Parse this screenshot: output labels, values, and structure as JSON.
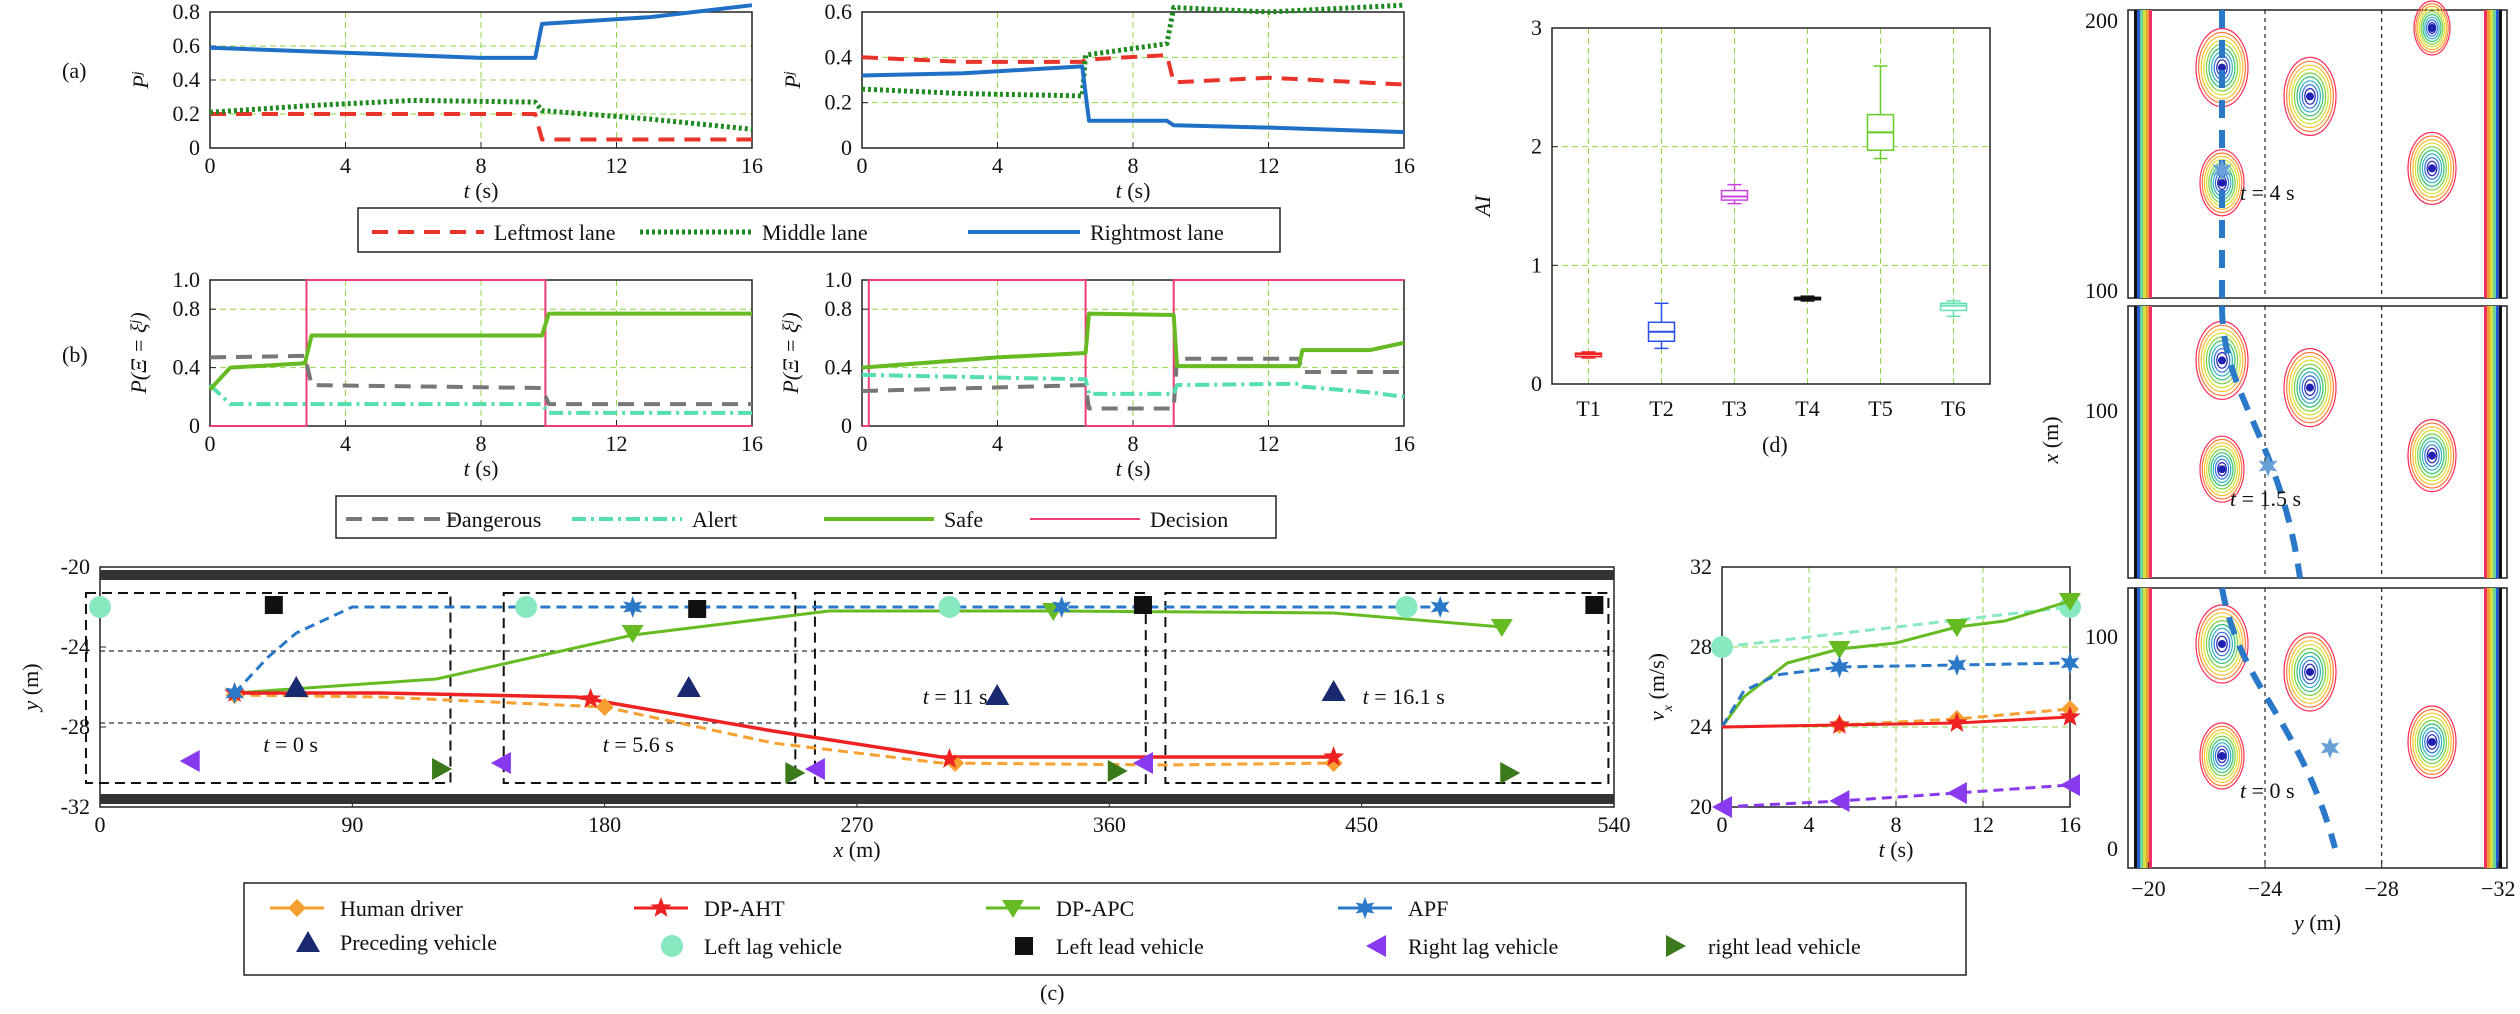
{
  "colors": {
    "leftmost": "#e8342a",
    "middle": "#1f8a1f",
    "rightmost": "#2070c8",
    "dangerous": "#777777",
    "alert": "#55dfb0",
    "safe": "#66bb22",
    "decision": "#f03c78",
    "human": "#f5a030",
    "dpaht": "#ee2222",
    "dpapc": "#66bb22",
    "apf": "#2a78c8",
    "preceding": "#1a2a70",
    "leftlag": "#88e8c0",
    "leftlead": "#111111",
    "rightlag": "#8a3aee",
    "rightlead": "#3a7a1a",
    "grid": "#8fd64a"
  },
  "labels": {
    "a": "(a)",
    "b": "(b)",
    "c": "(c)",
    "d": "(d)",
    "pj": "P",
    "pj_sup": "j",
    "pxi": "P(Ξ = ξ",
    "pxi_sup": "j",
    "pxi_end": ")",
    "t_s": "t (s)",
    "y_m": "y (m)",
    "x_m": "x (m)",
    "vx": "v",
    "vx_sub": "x",
    "vx_unit": " (m/s)",
    "ai": "AI",
    "snap_t4": "t = 4 s",
    "snap_t15": "t = 1.5 s",
    "snap_t0": "t = 0 s",
    "c_t0": "t = 0 s",
    "c_t56": "t = 5.6 s",
    "c_t11": "t = 11 s",
    "c_t161": "t = 16.1 s"
  },
  "legend_a": [
    "Leftmost lane",
    "Middle lane",
    "Rightmost lane"
  ],
  "legend_b": [
    "Dangerous",
    "Alert",
    "Safe",
    "Decision"
  ],
  "legend_c": [
    "Human driver",
    "DP-AHT",
    "DP-APC",
    "APF",
    "Preceding vehicle",
    "Left lag vehicle",
    "Left lead vehicle",
    "Right lag vehicle",
    "right lead vehicle"
  ],
  "chart_data": [
    {
      "id": "a1",
      "type": "line",
      "xlim": [
        0,
        16
      ],
      "ylim": [
        0,
        0.8
      ],
      "xticks": [
        "0",
        "4",
        "8",
        "12",
        "16"
      ],
      "yticks": [
        "0",
        "0.2",
        "0.4",
        "0.6",
        "0.8"
      ],
      "xlabel": "t (s)",
      "ylabel": "P^j",
      "series": [
        {
          "name": "Leftmost lane",
          "x": [
            0,
            9.6,
            9.8,
            16
          ],
          "y": [
            0.2,
            0.2,
            0.05,
            0.05
          ]
        },
        {
          "name": "Middle lane",
          "x": [
            0,
            3,
            6,
            9.6,
            9.8,
            13,
            16
          ],
          "y": [
            0.21,
            0.25,
            0.28,
            0.27,
            0.22,
            0.17,
            0.11
          ]
        },
        {
          "name": "Rightmost lane",
          "x": [
            0,
            4,
            8,
            9.6,
            9.8,
            13,
            16
          ],
          "y": [
            0.59,
            0.56,
            0.53,
            0.53,
            0.73,
            0.77,
            0.84
          ]
        }
      ]
    },
    {
      "id": "a2",
      "type": "line",
      "xlim": [
        0,
        16
      ],
      "ylim": [
        0,
        0.6
      ],
      "xticks": [
        "0",
        "4",
        "8",
        "12",
        "16"
      ],
      "yticks": [
        "0",
        "0.2",
        "0.4",
        "0.6"
      ],
      "xlabel": "t (s)",
      "ylabel": "P^j",
      "series": [
        {
          "name": "Leftmost lane",
          "x": [
            0,
            3,
            6.5,
            6.6,
            9,
            9.2,
            12,
            16
          ],
          "y": [
            0.4,
            0.38,
            0.38,
            0.39,
            0.41,
            0.29,
            0.31,
            0.28
          ]
        },
        {
          "name": "Middle lane",
          "x": [
            0,
            3,
            6.5,
            6.6,
            9,
            9.2,
            12,
            16
          ],
          "y": [
            0.26,
            0.24,
            0.23,
            0.41,
            0.46,
            0.62,
            0.6,
            0.63
          ]
        },
        {
          "name": "Rightmost lane",
          "x": [
            0,
            3,
            6.5,
            6.7,
            9,
            9.2,
            12,
            16
          ],
          "y": [
            0.32,
            0.33,
            0.36,
            0.12,
            0.12,
            0.1,
            0.09,
            0.07
          ]
        }
      ]
    },
    {
      "id": "b1",
      "type": "line",
      "xlim": [
        0,
        16
      ],
      "ylim": [
        0,
        1.0
      ],
      "xticks": [
        "0",
        "4",
        "8",
        "12",
        "16"
      ],
      "yticks": [
        "0",
        "0.4",
        "0.8",
        "1.0"
      ],
      "xlabel": "t (s)",
      "ylabel": "P(Ξ = ξ^j)",
      "series": [
        {
          "name": "Dangerous",
          "x": [
            0,
            2.8,
            3,
            9.8,
            10,
            16
          ],
          "y": [
            0.47,
            0.48,
            0.28,
            0.26,
            0.15,
            0.15
          ]
        },
        {
          "name": "Alert",
          "x": [
            0,
            0.6,
            2.8,
            3,
            9.8,
            10,
            16
          ],
          "y": [
            0.28,
            0.15,
            0.15,
            0.15,
            0.15,
            0.09,
            0.09
          ]
        },
        {
          "name": "Safe",
          "x": [
            0,
            0.6,
            2.8,
            3,
            9.8,
            10,
            16
          ],
          "y": [
            0.25,
            0.4,
            0.43,
            0.62,
            0.62,
            0.77,
            0.77
          ]
        },
        {
          "name": "Decision",
          "x": [
            0,
            2.85,
            2.85,
            9.9,
            9.9,
            16
          ],
          "y": [
            0,
            0,
            1.0,
            1.0,
            0,
            0
          ]
        }
      ]
    },
    {
      "id": "b2",
      "type": "line",
      "xlim": [
        0,
        16
      ],
      "ylim": [
        0,
        1.0
      ],
      "xticks": [
        "0",
        "4",
        "8",
        "12",
        "16"
      ],
      "yticks": [
        "0",
        "0.4",
        "0.8",
        "1.0"
      ],
      "xlabel": "t (s)",
      "ylabel": "P(Ξ = ξ^j)",
      "series": [
        {
          "name": "Dangerous",
          "x": [
            0,
            6.6,
            6.7,
            9.2,
            9.3,
            12.9,
            13,
            16
          ],
          "y": [
            0.24,
            0.28,
            0.12,
            0.12,
            0.46,
            0.46,
            0.37,
            0.37
          ]
        },
        {
          "name": "Alert",
          "x": [
            0,
            6.6,
            6.7,
            9.2,
            9.3,
            12.9,
            13,
            15,
            16
          ],
          "y": [
            0.35,
            0.32,
            0.22,
            0.22,
            0.28,
            0.29,
            0.27,
            0.23,
            0.2
          ]
        },
        {
          "name": "Safe",
          "x": [
            0,
            4,
            6.6,
            6.7,
            9.2,
            9.3,
            12.9,
            13,
            15,
            16
          ],
          "y": [
            0.4,
            0.47,
            0.5,
            0.77,
            0.76,
            0.41,
            0.41,
            0.52,
            0.52,
            0.57
          ]
        },
        {
          "name": "Decision",
          "x": [
            0,
            0.2,
            0.2,
            6.6,
            6.6,
            9.2,
            9.2,
            12.9,
            12.9,
            16
          ],
          "y": [
            0,
            0,
            1.0,
            1.0,
            0,
            0,
            1.0,
            1.0,
            1.0,
            1.0
          ]
        }
      ]
    },
    {
      "id": "d",
      "type": "box",
      "ylim": [
        0,
        3
      ],
      "categories": [
        "T1",
        "T2",
        "T3",
        "T4",
        "T5",
        "T6"
      ],
      "yticks": [
        "0",
        "1",
        "2",
        "3"
      ],
      "xlabel": "",
      "ylabel": "AI",
      "boxes": [
        {
          "min": 0.22,
          "q1": 0.23,
          "median": 0.25,
          "q3": 0.26,
          "max": 0.27
        },
        {
          "min": 0.3,
          "q1": 0.36,
          "median": 0.44,
          "q3": 0.52,
          "max": 0.68
        },
        {
          "min": 1.52,
          "q1": 1.55,
          "median": 1.58,
          "q3": 1.63,
          "max": 1.68
        },
        {
          "min": 0.7,
          "q1": 0.71,
          "median": 0.72,
          "q3": 0.73,
          "max": 0.74
        },
        {
          "min": 1.9,
          "q1": 1.97,
          "median": 2.12,
          "q3": 2.27,
          "max": 2.68
        },
        {
          "min": 0.57,
          "q1": 0.62,
          "median": 0.66,
          "q3": 0.68,
          "max": 0.7
        }
      ]
    },
    {
      "id": "c",
      "type": "line",
      "xlim": [
        0,
        540
      ],
      "ylim": [
        -32,
        -20
      ],
      "xticks": [
        "0",
        "90",
        "180",
        "270",
        "360",
        "450",
        "540"
      ],
      "yticks": [
        "-20",
        "-24",
        "-28",
        "-32"
      ],
      "xlabel": "x (m)",
      "ylabel": "y (m)",
      "series": [
        {
          "name": "Human driver",
          "x": [
            48,
            100,
            180,
            240,
            300,
            380,
            440
          ],
          "y": [
            -26.4,
            -26.5,
            -27.0,
            -28.8,
            -29.8,
            -29.9,
            -29.8
          ]
        },
        {
          "name": "DP-AHT",
          "x": [
            48,
            100,
            170,
            240,
            300,
            380,
            440
          ],
          "y": [
            -26.3,
            -26.3,
            -26.5,
            -28.2,
            -29.5,
            -29.5,
            -29.5
          ]
        },
        {
          "name": "DP-APC",
          "x": [
            48,
            120,
            190,
            260,
            340,
            440,
            500
          ],
          "y": [
            -26.3,
            -25.6,
            -23.4,
            -22.2,
            -22.2,
            -22.3,
            -23.0
          ]
        },
        {
          "name": "APF",
          "x": [
            48,
            60,
            70,
            90,
            160,
            250,
            340,
            480
          ],
          "y": [
            -26.3,
            -24.5,
            -23.3,
            -22.0,
            -22.0,
            -22.0,
            -22.0,
            -22.0
          ]
        }
      ],
      "vehicles": [
        {
          "name": "Preceding vehicle",
          "x": [
            70,
            210,
            320,
            440
          ],
          "y": [
            -26.0,
            -26.0,
            -26.4,
            -26.2
          ]
        },
        {
          "name": "Left lag vehicle",
          "x": [
            0,
            152,
            303,
            466
          ],
          "y": [
            -22.0,
            -22.0,
            -22.0,
            -22.0
          ]
        },
        {
          "name": "Left lead vehicle",
          "x": [
            62,
            213,
            372,
            533
          ],
          "y": [
            -21.9,
            -22.1,
            -21.9,
            -21.9
          ]
        },
        {
          "name": "Right lag vehicle",
          "x": [
            32,
            143,
            255,
            372
          ],
          "y": [
            -29.7,
            -29.8,
            -30.1,
            -29.8
          ]
        },
        {
          "name": "right lead vehicle",
          "x": [
            122,
            248,
            363,
            503
          ],
          "y": [
            -30.1,
            -30.3,
            -30.2,
            -30.3
          ]
        }
      ],
      "snapshots": [
        "t = 0 s",
        "t = 5.6 s",
        "t = 11 s",
        "t = 16.1 s"
      ]
    },
    {
      "id": "v",
      "type": "line",
      "xlim": [
        0,
        16
      ],
      "ylim": [
        20,
        32
      ],
      "xticks": [
        "0",
        "4",
        "8",
        "12",
        "16"
      ],
      "yticks": [
        "20",
        "24",
        "28",
        "32"
      ],
      "xlabel": "t (s)",
      "ylabel": "v_x (m/s)",
      "series": [
        {
          "name": "Left lag vehicle",
          "x": [
            0,
            16
          ],
          "y": [
            28,
            30
          ]
        },
        {
          "name": "DP-APC",
          "x": [
            0,
            1,
            3,
            5.4,
            8,
            10.8,
            13,
            16
          ],
          "y": [
            24,
            25.5,
            27.2,
            27.9,
            28.2,
            29.0,
            29.3,
            30.3
          ]
        },
        {
          "name": "APF",
          "x": [
            0,
            1,
            2.5,
            5.4,
            10.8,
            16
          ],
          "y": [
            24,
            25.8,
            26.6,
            27.0,
            27.1,
            27.2
          ]
        },
        {
          "name": "Human driver",
          "x": [
            0,
            5.4,
            10.8,
            16
          ],
          "y": [
            24,
            24.1,
            24.4,
            24.9
          ]
        },
        {
          "name": "DP-AHT",
          "x": [
            0,
            5.4,
            10.8,
            16
          ],
          "y": [
            24,
            24.1,
            24.2,
            24.5
          ]
        },
        {
          "name": "Right lag vehicle",
          "x": [
            0,
            5.4,
            10.8,
            16
          ],
          "y": [
            20,
            20.3,
            20.7,
            21.1
          ]
        }
      ]
    },
    {
      "id": "e",
      "type": "heatmap",
      "panels": [
        {
          "snapshot": "t = 4 s",
          "yticks_x": [
            "200",
            "100"
          ]
        },
        {
          "snapshot": "t = 1.5 s",
          "yticks_x": [
            "100"
          ]
        },
        {
          "snapshot": "t = 0 s",
          "yticks_x": [
            "100",
            "0"
          ]
        }
      ],
      "xticks": [
        "−20",
        "−24",
        "−28",
        "−32"
      ],
      "xlabel": "y (m)",
      "ylabel": "x (m)"
    }
  ]
}
